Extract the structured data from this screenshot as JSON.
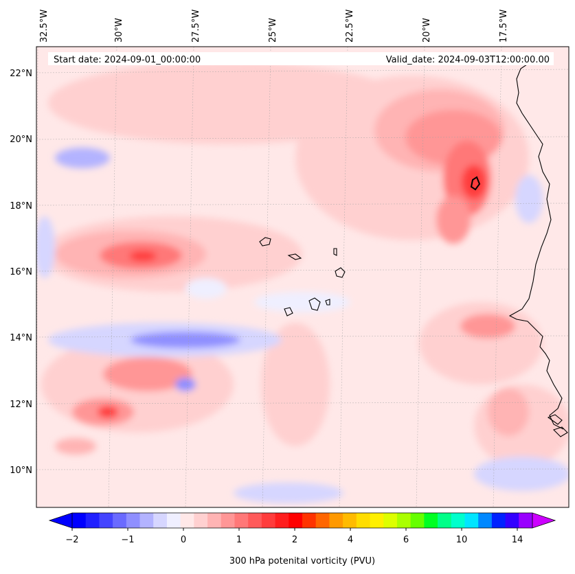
{
  "map": {
    "start_label": "Start date: 2024-09-01_00:00:00",
    "valid_label": "Valid_date: 2024-09-03T12:00:00.00",
    "lon_labels": [
      "32.5°W",
      "30°W",
      "27.5°W",
      "25°W",
      "22.5°W",
      "20°W",
      "17.5°W"
    ],
    "lat_labels": [
      "22°N",
      "20°N",
      "18°N",
      "16°N",
      "14°N",
      "12°N",
      "10°N"
    ],
    "extent": {
      "lon_min": -32.7,
      "lon_max": -15.6,
      "lat_min": 8.9,
      "lat_max": 22.8
    }
  },
  "colorbar": {
    "label": "300 hPa potenital vorticity (PVU)",
    "tick_labels": [
      "−2",
      "−1",
      "0",
      "1",
      "2",
      "4",
      "6",
      "10",
      "14"
    ],
    "levels": [
      -2,
      -1.75,
      -1.5,
      -1.25,
      -1,
      -0.75,
      -0.5,
      -0.25,
      0,
      0.25,
      0.5,
      0.75,
      1,
      1.25,
      1.5,
      1.75,
      2,
      2.5,
      3,
      3.5,
      4,
      4.5,
      5,
      5.5,
      6,
      7,
      8,
      9,
      10,
      11,
      12,
      13,
      14,
      15
    ],
    "colors": [
      "#0000ff",
      "#2020ff",
      "#4444ff",
      "#6a6aff",
      "#8f8fff",
      "#b3b3ff",
      "#d6d6ff",
      "#efefff",
      "#ffe8e8",
      "#ffd0d0",
      "#ffb4b4",
      "#ff9696",
      "#ff7878",
      "#ff5a5a",
      "#ff3c3c",
      "#ff1e1e",
      "#ff0000",
      "#ff3300",
      "#ff6600",
      "#ff9900",
      "#ffbb00",
      "#ffdd00",
      "#fff000",
      "#ddff00",
      "#aaff00",
      "#66ff00",
      "#00ff22",
      "#00ff88",
      "#00ffcc",
      "#00e5ff",
      "#0088ff",
      "#0022ff",
      "#3300ff",
      "#9900ff"
    ],
    "under_color": "#0000ff",
    "over_color": "#cc00ff"
  }
}
